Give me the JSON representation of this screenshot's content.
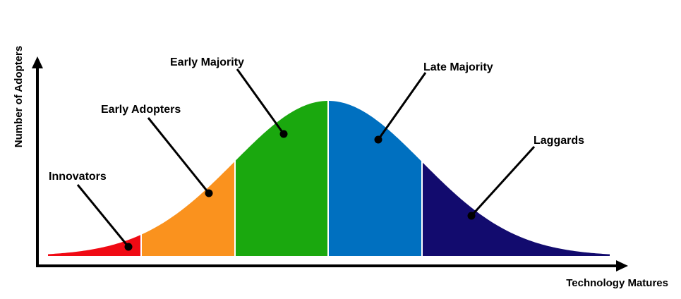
{
  "title": "",
  "axes": {
    "x_label": "Technology Matures",
    "y_label": "Number of Adopters"
  },
  "segments": [
    {
      "id": "innovators",
      "label": "Innovators",
      "color": "#f00a14"
    },
    {
      "id": "early-adopters",
      "label": "Early Adopters",
      "color": "#fa921e"
    },
    {
      "id": "early-majority",
      "label": "Early Majority",
      "color": "#1aa80e"
    },
    {
      "id": "late-majority",
      "label": "Late Majority",
      "color": "#0070c0"
    },
    {
      "id": "laggards",
      "label": "Laggards",
      "color": "#120b6e"
    }
  ]
}
